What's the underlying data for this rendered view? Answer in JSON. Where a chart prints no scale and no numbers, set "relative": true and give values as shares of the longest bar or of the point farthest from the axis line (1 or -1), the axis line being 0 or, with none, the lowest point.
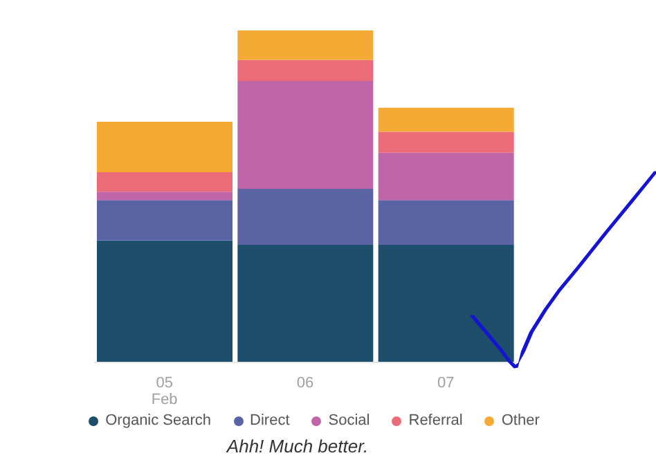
{
  "chart_data": {
    "type": "bar",
    "stacked": true,
    "relative": true,
    "categories": [
      "05\nFeb",
      "06",
      "07"
    ],
    "series": [
      {
        "name": "Organic Search",
        "color": "#1d4e6b",
        "values": [
          0.367,
          0.354,
          0.354
        ]
      },
      {
        "name": "Direct",
        "color": "#5a63a3",
        "values": [
          0.122,
          0.169,
          0.135
        ]
      },
      {
        "name": "Social",
        "color": "#c066a8",
        "values": [
          0.025,
          0.325,
          0.143
        ]
      },
      {
        "name": "Referral",
        "color": "#ec6b78",
        "values": [
          0.059,
          0.063,
          0.063
        ]
      },
      {
        "name": "Other",
        "color": "#f4aa35",
        "values": [
          0.152,
          0.089,
          0.072
        ]
      }
    ],
    "legend": "bottom",
    "annotations": [
      "Ahh! Much better."
    ]
  }
}
